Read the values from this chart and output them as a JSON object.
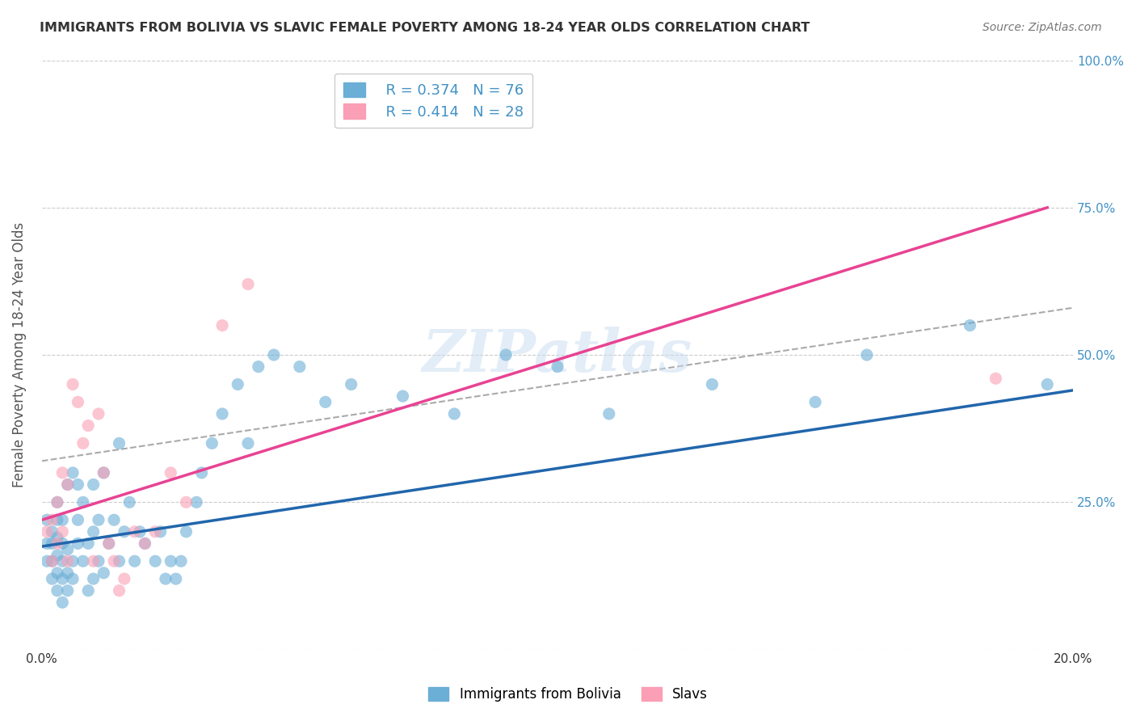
{
  "title": "IMMIGRANTS FROM BOLIVIA VS SLAVIC FEMALE POVERTY AMONG 18-24 YEAR OLDS CORRELATION CHART",
  "source": "Source: ZipAtlas.com",
  "xlabel": "",
  "ylabel": "Female Poverty Among 18-24 Year Olds",
  "xlim": [
    0.0,
    0.2
  ],
  "ylim": [
    0.0,
    1.0
  ],
  "xtick_labels": [
    "0.0%",
    "",
    "",
    "",
    "",
    "",
    "",
    "",
    "",
    "",
    "20.0%"
  ],
  "ytick_labels": [
    "",
    "25.0%",
    "",
    "50.0%",
    "",
    "75.0%",
    "",
    "100.0%"
  ],
  "legend_r_blue": "R = 0.374",
  "legend_n_blue": "N = 76",
  "legend_r_pink": "R = 0.414",
  "legend_n_pink": "N = 28",
  "legend_label_blue": "Immigrants from Bolivia",
  "legend_label_pink": "Slavs",
  "blue_color": "#6baed6",
  "pink_color": "#fa9fb5",
  "blue_line_color": "#2166ac",
  "pink_line_color": "#e84393",
  "dashed_line_color": "#aaaaaa",
  "title_color": "#333333",
  "axis_label_color": "#555555",
  "tick_color_right": "#4292c6",
  "watermark": "ZIPatlas",
  "blue_scatter_x": [
    0.001,
    0.001,
    0.001,
    0.002,
    0.002,
    0.002,
    0.002,
    0.003,
    0.003,
    0.003,
    0.003,
    0.003,
    0.003,
    0.004,
    0.004,
    0.004,
    0.004,
    0.004,
    0.005,
    0.005,
    0.005,
    0.005,
    0.006,
    0.006,
    0.006,
    0.007,
    0.007,
    0.007,
    0.008,
    0.008,
    0.009,
    0.009,
    0.01,
    0.01,
    0.01,
    0.011,
    0.011,
    0.012,
    0.012,
    0.013,
    0.014,
    0.015,
    0.015,
    0.016,
    0.017,
    0.018,
    0.019,
    0.02,
    0.022,
    0.023,
    0.024,
    0.025,
    0.026,
    0.027,
    0.028,
    0.03,
    0.031,
    0.033,
    0.035,
    0.038,
    0.04,
    0.042,
    0.045,
    0.05,
    0.055,
    0.06,
    0.07,
    0.08,
    0.09,
    0.1,
    0.11,
    0.13,
    0.15,
    0.16,
    0.18,
    0.195
  ],
  "blue_scatter_y": [
    0.15,
    0.18,
    0.22,
    0.12,
    0.15,
    0.18,
    0.2,
    0.1,
    0.13,
    0.16,
    0.19,
    0.22,
    0.25,
    0.08,
    0.12,
    0.15,
    0.18,
    0.22,
    0.1,
    0.13,
    0.17,
    0.28,
    0.12,
    0.15,
    0.3,
    0.18,
    0.22,
    0.28,
    0.15,
    0.25,
    0.1,
    0.18,
    0.12,
    0.2,
    0.28,
    0.15,
    0.22,
    0.13,
    0.3,
    0.18,
    0.22,
    0.15,
    0.35,
    0.2,
    0.25,
    0.15,
    0.2,
    0.18,
    0.15,
    0.2,
    0.12,
    0.15,
    0.12,
    0.15,
    0.2,
    0.25,
    0.3,
    0.35,
    0.4,
    0.45,
    0.35,
    0.48,
    0.5,
    0.48,
    0.42,
    0.45,
    0.43,
    0.4,
    0.5,
    0.48,
    0.4,
    0.45,
    0.42,
    0.5,
    0.55,
    0.45
  ],
  "pink_scatter_x": [
    0.001,
    0.002,
    0.002,
    0.003,
    0.003,
    0.004,
    0.004,
    0.005,
    0.005,
    0.006,
    0.007,
    0.008,
    0.009,
    0.01,
    0.011,
    0.012,
    0.013,
    0.014,
    0.015,
    0.016,
    0.018,
    0.02,
    0.022,
    0.025,
    0.028,
    0.035,
    0.04,
    0.185
  ],
  "pink_scatter_y": [
    0.2,
    0.15,
    0.22,
    0.18,
    0.25,
    0.2,
    0.3,
    0.15,
    0.28,
    0.45,
    0.42,
    0.35,
    0.38,
    0.15,
    0.4,
    0.3,
    0.18,
    0.15,
    0.1,
    0.12,
    0.2,
    0.18,
    0.2,
    0.3,
    0.25,
    0.55,
    0.62,
    0.46
  ],
  "blue_line_x": [
    0.0,
    0.2
  ],
  "blue_line_y": [
    0.175,
    0.44
  ],
  "pink_line_x": [
    0.0,
    0.195
  ],
  "pink_line_y": [
    0.22,
    0.75
  ],
  "dashed_line_x": [
    0.0,
    0.2
  ],
  "dashed_line_y": [
    0.32,
    0.58
  ]
}
